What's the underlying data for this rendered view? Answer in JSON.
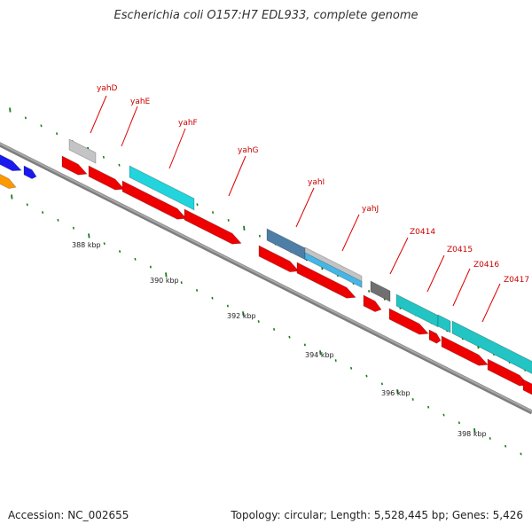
{
  "header": {
    "title": "Escherichia coli O157:H7 EDL933, complete genome"
  },
  "footer": {
    "accession": "Accession: NC_002655",
    "topology": "Topology: circular; Length: 5,528,445 bp; Genes: 5,426"
  },
  "colors": {
    "backbone": "#8a8a8a",
    "tick": "#1a7a1a",
    "label_line": "#cc0000",
    "red": "#ee0000",
    "cyan": "#22d4dc",
    "teal": "#22c4c4",
    "blue": "#1a1aee",
    "orange": "#ff9900",
    "lightgray": "#c4c4c4",
    "darkgray": "#707070",
    "steelblue": "#4e7ea6",
    "skyblue": "#46b6e6"
  },
  "map": {
    "gene_labels": [
      "yahD",
      "yahE",
      "yahF",
      "yahG",
      "yahI",
      "yahJ",
      "Z0414",
      "Z0415",
      "Z0416",
      "Z0417"
    ],
    "kbp_labels": [
      "388 kbp",
      "390 kbp",
      "392 kbp",
      "394 kbp",
      "396 kbp",
      "398 kbp"
    ]
  }
}
